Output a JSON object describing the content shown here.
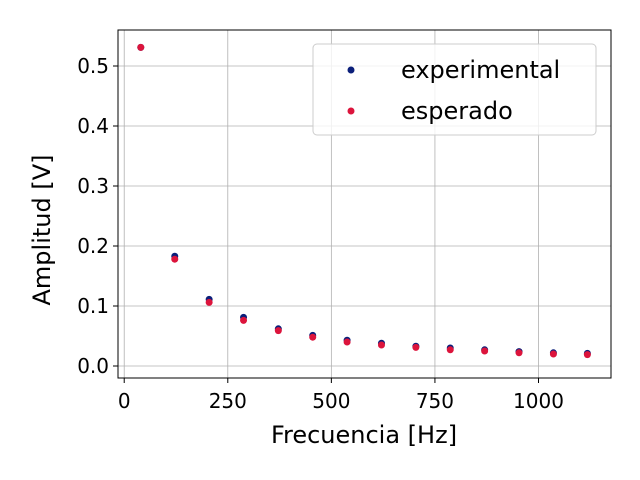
{
  "chart_data": {
    "type": "scatter",
    "title": "",
    "xlabel": "Frecuencia [Hz]",
    "ylabel": "Amplitud [V]",
    "xlim": [
      -15,
      1175
    ],
    "ylim": [
      -0.02,
      0.56
    ],
    "xticks": [
      0,
      250,
      500,
      750,
      1000
    ],
    "xtick_labels": [
      "0",
      "250",
      "500",
      "750",
      "1000"
    ],
    "yticks": [
      0.0,
      0.1,
      0.2,
      0.3,
      0.4,
      0.5
    ],
    "ytick_labels": [
      "0.0",
      "0.1",
      "0.2",
      "0.3",
      "0.4",
      "0.5"
    ],
    "grid": true,
    "legend_position": "top-right",
    "series": [
      {
        "name": "experimental",
        "color": "#0b1f7a",
        "x": [
          40,
          122,
          205,
          288,
          372,
          455,
          538,
          621,
          704,
          787,
          870,
          953,
          1036,
          1118
        ],
        "y": [
          0.531,
          0.183,
          0.111,
          0.081,
          0.062,
          0.051,
          0.043,
          0.038,
          0.033,
          0.03,
          0.027,
          0.024,
          0.022,
          0.021
        ]
      },
      {
        "name": "esperado",
        "color": "#dc143c",
        "x": [
          40,
          122,
          205,
          288,
          372,
          455,
          538,
          621,
          704,
          787,
          870,
          953,
          1036,
          1118
        ],
        "y": [
          0.531,
          0.178,
          0.106,
          0.076,
          0.059,
          0.048,
          0.04,
          0.035,
          0.031,
          0.027,
          0.025,
          0.022,
          0.02,
          0.019
        ]
      }
    ]
  }
}
